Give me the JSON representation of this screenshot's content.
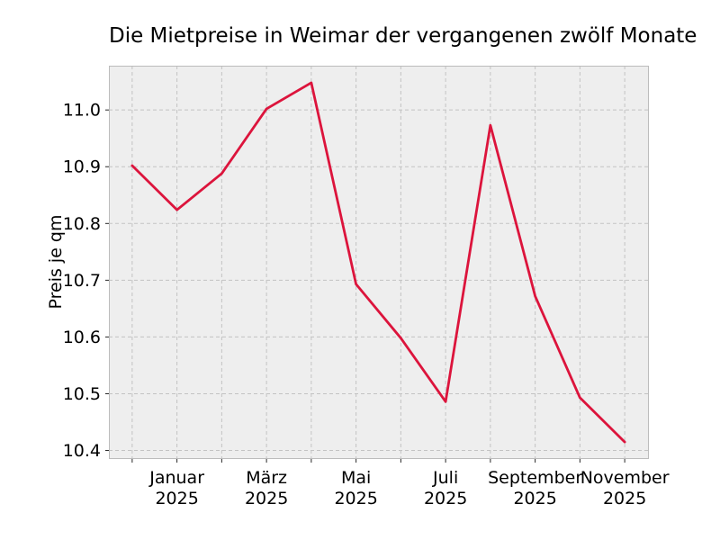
{
  "chart_data": {
    "type": "line",
    "title": "Die Mietpreise in Weimar der vergangenen zwölf Monate",
    "ylabel": "Preis je qm",
    "xlabel": "",
    "x": [
      0,
      1,
      2,
      3,
      4,
      5,
      6,
      7,
      8,
      9,
      10,
      11
    ],
    "values": [
      10.902,
      10.824,
      10.888,
      11.002,
      11.048,
      10.693,
      10.598,
      10.486,
      10.973,
      10.672,
      10.493,
      10.415
    ],
    "x_ticks": [
      {
        "pos": 1,
        "line1": "Januar",
        "line2": "2025"
      },
      {
        "pos": 3,
        "line1": "März",
        "line2": "2025"
      },
      {
        "pos": 5,
        "line1": "Mai",
        "line2": "2025"
      },
      {
        "pos": 7,
        "line1": "Juli",
        "line2": "2025"
      },
      {
        "pos": 9,
        "line1": "September",
        "line2": "2025"
      },
      {
        "pos": 11,
        "line1": "November",
        "line2": "2025"
      }
    ],
    "y_ticks": [
      {
        "value": 11.0,
        "label": "11.0"
      },
      {
        "value": 10.9,
        "label": "10.9"
      },
      {
        "value": 10.8,
        "label": "10.8"
      },
      {
        "value": 10.7,
        "label": "10.7"
      },
      {
        "value": 10.6,
        "label": "10.6"
      },
      {
        "value": 10.5,
        "label": "10.5"
      },
      {
        "value": 10.4,
        "label": "10.4"
      }
    ],
    "xlim": [
      -0.52,
      11.54
    ],
    "ylim": [
      10.385,
      11.078
    ],
    "grid": {
      "show": true,
      "style": "dashed",
      "color": "#c3c3c3"
    },
    "legend": "none",
    "colors": {
      "line": "#dc143c",
      "plot_bg": "#eeeeee",
      "axes_edge": "#bcbcbc",
      "tick": "#262626",
      "figure_bg": "#ffffff",
      "text": "#000000"
    },
    "line_width": 2.8
  }
}
